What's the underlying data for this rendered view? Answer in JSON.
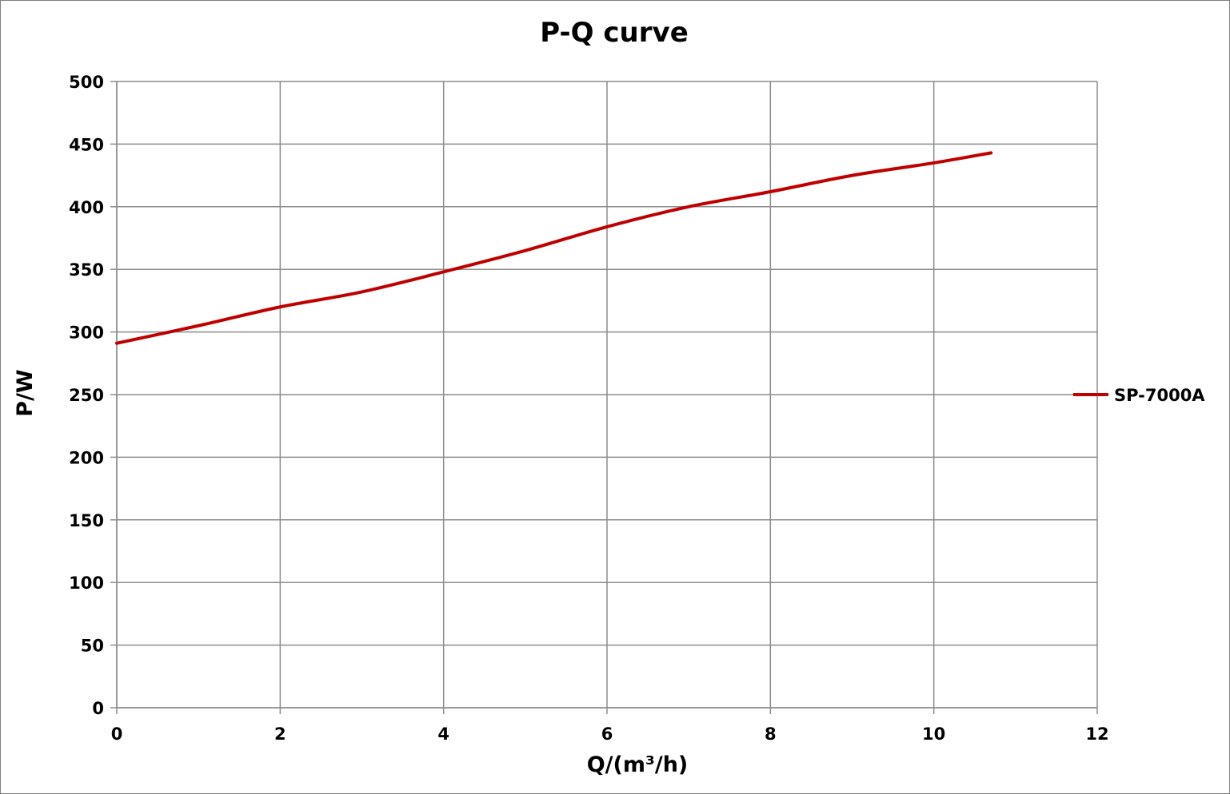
{
  "chart_data": {
    "type": "line",
    "title": "P-Q  curve",
    "xlabel": "Q/(m³/h)",
    "ylabel": "P/W",
    "xlim": [
      0,
      12
    ],
    "ylim": [
      0,
      500
    ],
    "xticks": [
      0,
      2,
      4,
      6,
      8,
      10,
      12
    ],
    "yticks": [
      0,
      50,
      100,
      150,
      200,
      250,
      300,
      350,
      400,
      450,
      500
    ],
    "grid": true,
    "legend_position": "right",
    "series": [
      {
        "name": "SP-7000A",
        "color": "#c00000",
        "x": [
          0,
          1,
          2,
          3,
          4,
          5,
          6,
          7,
          8,
          9,
          10,
          10.7
        ],
        "y": [
          291,
          305,
          320,
          332,
          348,
          365,
          384,
          400,
          412,
          425,
          435,
          443
        ]
      }
    ]
  }
}
